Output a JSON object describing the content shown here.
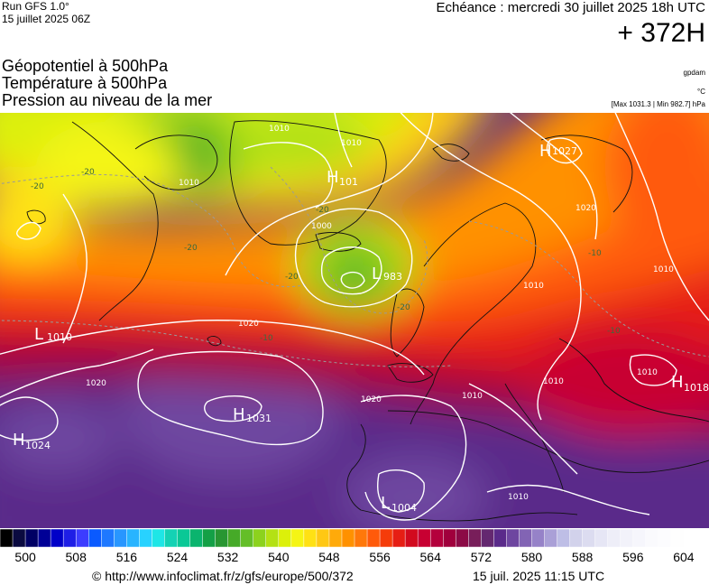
{
  "header": {
    "run_label": "Run GFS 1.0°",
    "run_date": "15 juillet 2025 06Z",
    "forecast_time": "Echéance : mercredi 30 juillet 2025 18h UTC",
    "lead_time": "+ 372H"
  },
  "parameters": [
    "Géopotentiel à 500hPa",
    "Température à 500hPa",
    "Pression au niveau de la mer"
  ],
  "units": {
    "geopotential": "gpdam",
    "temperature": "°C",
    "pressure_range": "[Max 1031.3 | Min 982.7] hPa"
  },
  "pressure_centers": [
    {
      "type": "H",
      "value": "1027"
    },
    {
      "type": "H",
      "value": "101"
    },
    {
      "type": "L",
      "value": "983"
    },
    {
      "type": "L",
      "value": "1010"
    },
    {
      "type": "H",
      "value": "1031"
    },
    {
      "type": "H",
      "value": "1024"
    },
    {
      "type": "H",
      "value": "1018"
    },
    {
      "type": "L",
      "value": "1004"
    }
  ],
  "isobar_labels": [
    "1010",
    "1010",
    "1010",
    "1000",
    "1020",
    "1020",
    "1020",
    "1020",
    "1010",
    "1010",
    "1010",
    "1010",
    "1010",
    "1010"
  ],
  "temperature_labels": [
    "-20",
    "-20",
    "-20",
    "-20",
    "-20",
    "-20",
    "-10",
    "-10",
    "-10"
  ],
  "colorbar": {
    "min": 496,
    "max": 608,
    "step": 2,
    "ticks": [
      "500",
      "508",
      "516",
      "524",
      "532",
      "540",
      "548",
      "556",
      "564",
      "572",
      "580",
      "588",
      "596",
      "604"
    ],
    "colors": [
      "#000000",
      "#0a0a40",
      "#000064",
      "#000096",
      "#0000c8",
      "#1e1ee6",
      "#3c3cff",
      "#0a5aff",
      "#1e78ff",
      "#2896ff",
      "#28b4ff",
      "#28d2ff",
      "#1ee6e6",
      "#14d2b4",
      "#0ac896",
      "#0ab46e",
      "#14a046",
      "#289632",
      "#46aa28",
      "#64be28",
      "#8cd21e",
      "#b4e114",
      "#dcf00a",
      "#f5f514",
      "#ffe114",
      "#ffc814",
      "#ffaa0a",
      "#ff9100",
      "#ff780a",
      "#ff5a0a",
      "#f53c0a",
      "#e61e14",
      "#d20a1e",
      "#c80032",
      "#b4003c",
      "#a0003c",
      "#8c0a46",
      "#781e5a",
      "#642870",
      "#5a2a8a",
      "#6e46a0",
      "#8264b4",
      "#9682c8",
      "#aaa0d7",
      "#bebee6",
      "#d2d2eb",
      "#dcdcf0",
      "#e6e6f5",
      "#eeeef8",
      "#f2f2fa",
      "#f6f6fc",
      "#fafafd",
      "#fcfcfe",
      "#fefefe",
      "#ffffff",
      "#ffffff"
    ]
  },
  "footer": {
    "url": "© http://www.infoclimat.fr/z/gfs/europe/500/372",
    "generated": "15 juil. 2025 11:15 UTC"
  }
}
